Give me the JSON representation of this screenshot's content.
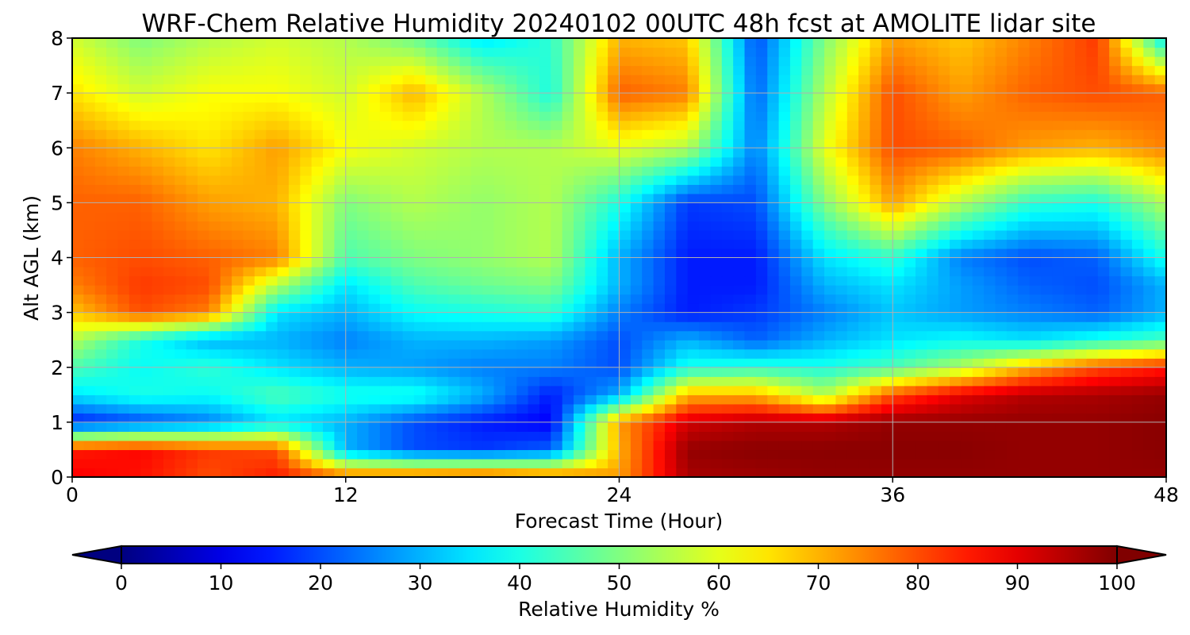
{
  "chart_data": {
    "type": "heatmap",
    "title": "WRF-Chem Relative Humidity 20240102 00UTC 48h fcst at AMOLITE lidar site",
    "xlabel": "Forecast Time (Hour)",
    "ylabel": "Alt AGL (km)",
    "xlim": [
      0,
      48
    ],
    "ylim": [
      0,
      8
    ],
    "xticks": [
      0,
      12,
      24,
      36,
      48
    ],
    "yticks": [
      0,
      1,
      2,
      3,
      4,
      5,
      6,
      7,
      8
    ],
    "grid": true,
    "colormap": "jet",
    "colorbar": {
      "label": "Relative Humidity %",
      "min": 0,
      "max": 100,
      "ticks": [
        0,
        10,
        20,
        30,
        40,
        50,
        60,
        70,
        80,
        90,
        100
      ],
      "extend": "both",
      "orientation": "horizontal",
      "placement": "bottom"
    },
    "x": [
      0,
      3,
      6,
      9,
      12,
      15,
      18,
      21,
      24,
      27,
      30,
      33,
      36,
      39,
      42,
      45,
      48
    ],
    "y": [
      0,
      0.5,
      1,
      1.5,
      2,
      2.5,
      3,
      3.5,
      4,
      5,
      6,
      7,
      8
    ],
    "z": [
      [
        88,
        86,
        80,
        85,
        78,
        80,
        82,
        78,
        72,
        96,
        97,
        98,
        98,
        98,
        98,
        98,
        98
      ],
      [
        85,
        87,
        82,
        80,
        30,
        20,
        18,
        22,
        70,
        98,
        99,
        99,
        99,
        99,
        98,
        98,
        99
      ],
      [
        15,
        20,
        25,
        35,
        30,
        20,
        15,
        12,
        72,
        92,
        95,
        95,
        98,
        98,
        98,
        98,
        99
      ],
      [
        35,
        40,
        38,
        45,
        40,
        40,
        30,
        15,
        30,
        70,
        70,
        55,
        80,
        90,
        95,
        96,
        98
      ],
      [
        45,
        38,
        42,
        35,
        30,
        28,
        25,
        25,
        20,
        40,
        42,
        40,
        45,
        55,
        70,
        80,
        85
      ],
      [
        55,
        40,
        30,
        30,
        25,
        30,
        30,
        28,
        20,
        30,
        22,
        30,
        35,
        38,
        35,
        40,
        45
      ],
      [
        68,
        80,
        75,
        35,
        30,
        38,
        40,
        42,
        25,
        15,
        18,
        25,
        32,
        28,
        25,
        22,
        30
      ],
      [
        75,
        82,
        80,
        55,
        35,
        45,
        48,
        50,
        30,
        15,
        15,
        30,
        35,
        28,
        22,
        20,
        30
      ],
      [
        78,
        80,
        78,
        75,
        45,
        50,
        52,
        55,
        30,
        15,
        15,
        35,
        42,
        25,
        20,
        22,
        40
      ],
      [
        78,
        78,
        72,
        70,
        50,
        55,
        52,
        55,
        40,
        18,
        20,
        50,
        72,
        55,
        42,
        40,
        55
      ],
      [
        75,
        70,
        65,
        72,
        62,
        58,
        55,
        55,
        60,
        55,
        25,
        60,
        80,
        78,
        72,
        70,
        75
      ],
      [
        65,
        58,
        62,
        62,
        58,
        70,
        55,
        40,
        78,
        75,
        22,
        55,
        80,
        72,
        78,
        80,
        78
      ],
      [
        58,
        50,
        55,
        58,
        55,
        48,
        35,
        42,
        70,
        68,
        20,
        50,
        72,
        68,
        75,
        82,
        35
      ]
    ]
  }
}
